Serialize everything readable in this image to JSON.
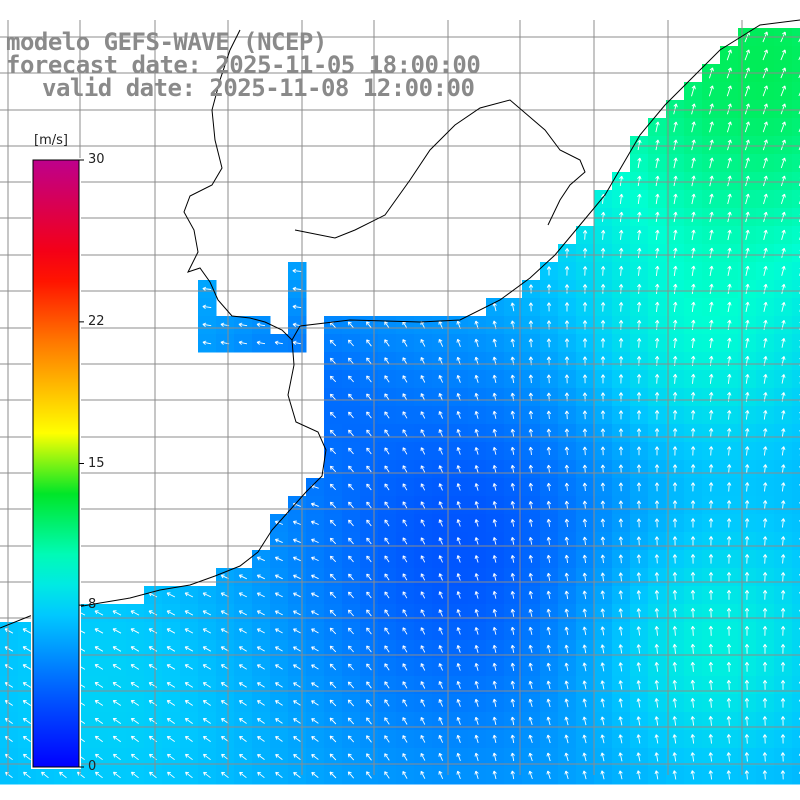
{
  "title": {
    "line1": "modelo GEFS-WAVE (NCEP)",
    "line2": "forecast date: 2025-11-05 18:00:00",
    "line3": "valid date: 2025-11-08 12:00:00"
  },
  "colorbar": {
    "unit": "[m/s]",
    "ticks": [
      {
        "label": "30",
        "value": 30
      },
      {
        "label": "22",
        "value": 22
      },
      {
        "label": "15",
        "value": 15
      },
      {
        "label": "8",
        "value": 8
      },
      {
        "label": "0",
        "value": 0
      }
    ],
    "colors": [
      "#0000ff",
      "#0080ff",
      "#00e0ff",
      "#00ff40",
      "#ffff00",
      "#ff8000",
      "#ff0000",
      "#c00080"
    ]
  },
  "map": {
    "land_color": "#ffffff",
    "grid_color": "#8c8c8c",
    "vector_color": "#ffffff"
  }
}
